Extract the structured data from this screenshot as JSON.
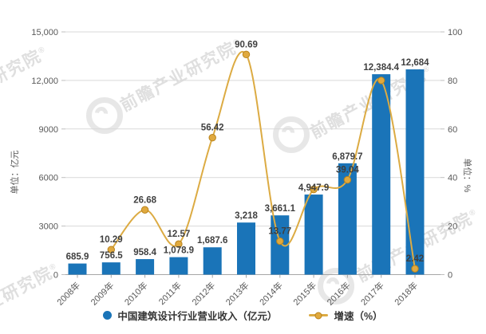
{
  "watermark": {
    "text": "前瞻产业研究院",
    "reg": "®"
  },
  "chart_data": {
    "type": "bar+line",
    "categories": [
      "2008年",
      "2009年",
      "2010年",
      "2011年",
      "2012年",
      "2013年",
      "2014年",
      "2015年",
      "2016年",
      "2017年",
      "2018年"
    ],
    "series": [
      {
        "name": "中国建筑设计行业营业收入（亿元）",
        "type": "bar",
        "axis": "left",
        "color": "#1a74b8",
        "values": [
          685.9,
          756.5,
          958.4,
          1078.9,
          1687.6,
          3218,
          3661.1,
          4947.9,
          6879.7,
          12384.4,
          12684
        ],
        "labels": [
          "685.9",
          "756.5",
          "958.4",
          "1,078.9",
          "1,687.6",
          "3,218",
          "3,661.1",
          "4,947.9",
          "6,879.7",
          "12,384.4",
          "12,684"
        ]
      },
      {
        "name": "增速（%）",
        "type": "line",
        "axis": "right",
        "color": "#dcab43",
        "marker_fill": "#e0a93e",
        "marker_stroke": "#b9831c",
        "values": [
          null,
          10.29,
          26.68,
          12.57,
          56.42,
          90.69,
          13.77,
          35.1,
          39.04,
          80.0,
          2.42
        ],
        "labels": [
          null,
          "10.29",
          "26.68",
          "12.57",
          "56.42",
          "90.69",
          "13.77",
          null,
          "39.04",
          null,
          "2.42"
        ]
      }
    ],
    "left_axis": {
      "title": "单位：亿元",
      "min": 0,
      "max": 15000,
      "tick_values": [
        0,
        3000,
        6000,
        9000,
        12000,
        15000
      ],
      "tick_labels": [
        "0",
        "3000",
        "6000",
        "9000",
        "12,000",
        "15,000"
      ]
    },
    "right_axis": {
      "title": "单位：%",
      "min": 0,
      "max": 100,
      "tick_values": [
        0,
        20,
        40,
        60,
        80,
        100
      ],
      "tick_labels": [
        "0",
        "20",
        "40",
        "60",
        "80",
        "100"
      ]
    },
    "legend": [
      {
        "label": "中国建筑设计行业营业收入（亿元）"
      },
      {
        "label": "增速（%）"
      }
    ],
    "grid": "horizontal",
    "legend_position": "bottom"
  }
}
